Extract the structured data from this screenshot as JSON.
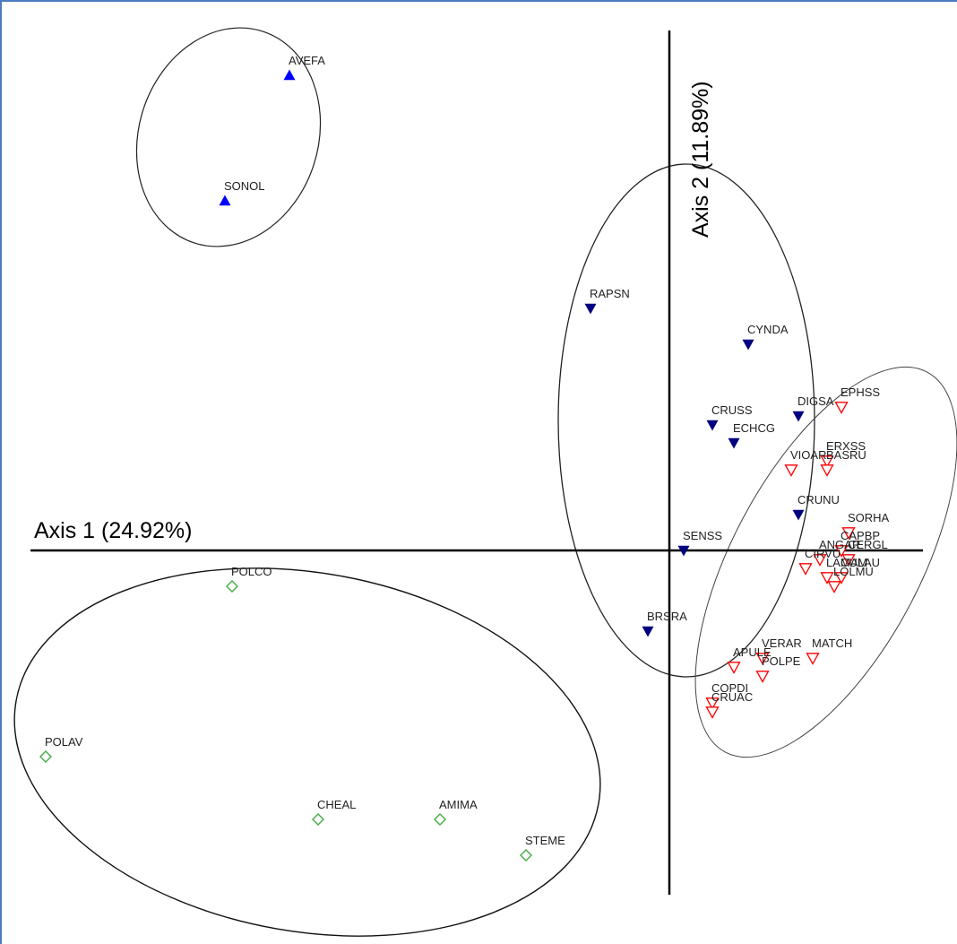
{
  "chart_data": {
    "type": "scatter",
    "title": "",
    "xlabel": "Axis 1 (24.92%)",
    "ylabel": "Axis 2 (11.89%)",
    "grid": false,
    "legend": "none",
    "series": [
      {
        "color": "#0000ff",
        "marker": "triangle-up-filled",
        "points": [
          {
            "label": "AVEFA",
            "x": -5.3,
            "y": 5.3
          },
          {
            "label": "SONOL",
            "x": -6.2,
            "y": 3.9
          }
        ]
      },
      {
        "color": "#000080",
        "marker": "triangle-down-filled",
        "points": [
          {
            "label": "RAPSN",
            "x": -1.1,
            "y": 2.7
          },
          {
            "label": "CYNDA",
            "x": 1.1,
            "y": 2.3
          },
          {
            "label": "CRUSS",
            "x": 0.6,
            "y": 1.4
          },
          {
            "label": "ECHCG",
            "x": 0.9,
            "y": 1.2
          },
          {
            "label": "DIGSA",
            "x": 1.8,
            "y": 1.5
          },
          {
            "label": "CRUNU",
            "x": 1.8,
            "y": 0.4
          },
          {
            "label": "SENSS",
            "x": 0.2,
            "y": 0.0
          },
          {
            "label": "BRSRA",
            "x": -0.3,
            "y": -0.9
          }
        ]
      },
      {
        "color": "#ff0000",
        "marker": "triangle-down-open",
        "points": [
          {
            "label": "EPHSS",
            "x": 2.4,
            "y": 1.6
          },
          {
            "label": "ERXSS",
            "x": 2.2,
            "y": 1.0
          },
          {
            "label": "BASRU",
            "x": 2.2,
            "y": 0.9
          },
          {
            "label": "VIOAR",
            "x": 1.7,
            "y": 0.9
          },
          {
            "label": "SORHA",
            "x": 2.5,
            "y": 0.2
          },
          {
            "label": "CAPBP",
            "x": 2.4,
            "y": 0.0
          },
          {
            "label": "ANGAR",
            "x": 2.1,
            "y": -0.1
          },
          {
            "label": "CIRVU",
            "x": 1.9,
            "y": -0.2
          },
          {
            "label": "CERGL",
            "x": 2.5,
            "y": -0.1
          },
          {
            "label": "CULAU",
            "x": 2.4,
            "y": -0.3
          },
          {
            "label": "LAMAM",
            "x": 2.2,
            "y": -0.3
          },
          {
            "label": "LOLMU",
            "x": 2.3,
            "y": -0.4
          },
          {
            "label": "VERAR",
            "x": 1.3,
            "y": -1.2
          },
          {
            "label": "MATCH",
            "x": 2.0,
            "y": -1.2
          },
          {
            "label": "APULE",
            "x": 0.9,
            "y": -1.3
          },
          {
            "label": "POLPE",
            "x": 1.3,
            "y": -1.4
          },
          {
            "label": "COPDI",
            "x": 0.6,
            "y": -1.7
          },
          {
            "label": "CRUAC",
            "x": 0.6,
            "y": -1.8
          }
        ]
      },
      {
        "color": "#44aa44",
        "marker": "diamond-open",
        "points": [
          {
            "label": "POLCO",
            "x": -6.1,
            "y": -0.4
          },
          {
            "label": "POLAV",
            "x": -8.7,
            "y": -2.3
          },
          {
            "label": "CHEAL",
            "x": -4.9,
            "y": -3.0
          },
          {
            "label": "AMIMA",
            "x": -3.2,
            "y": -3.0
          },
          {
            "label": "STEME",
            "x": -2.0,
            "y": -3.4
          }
        ]
      }
    ]
  }
}
